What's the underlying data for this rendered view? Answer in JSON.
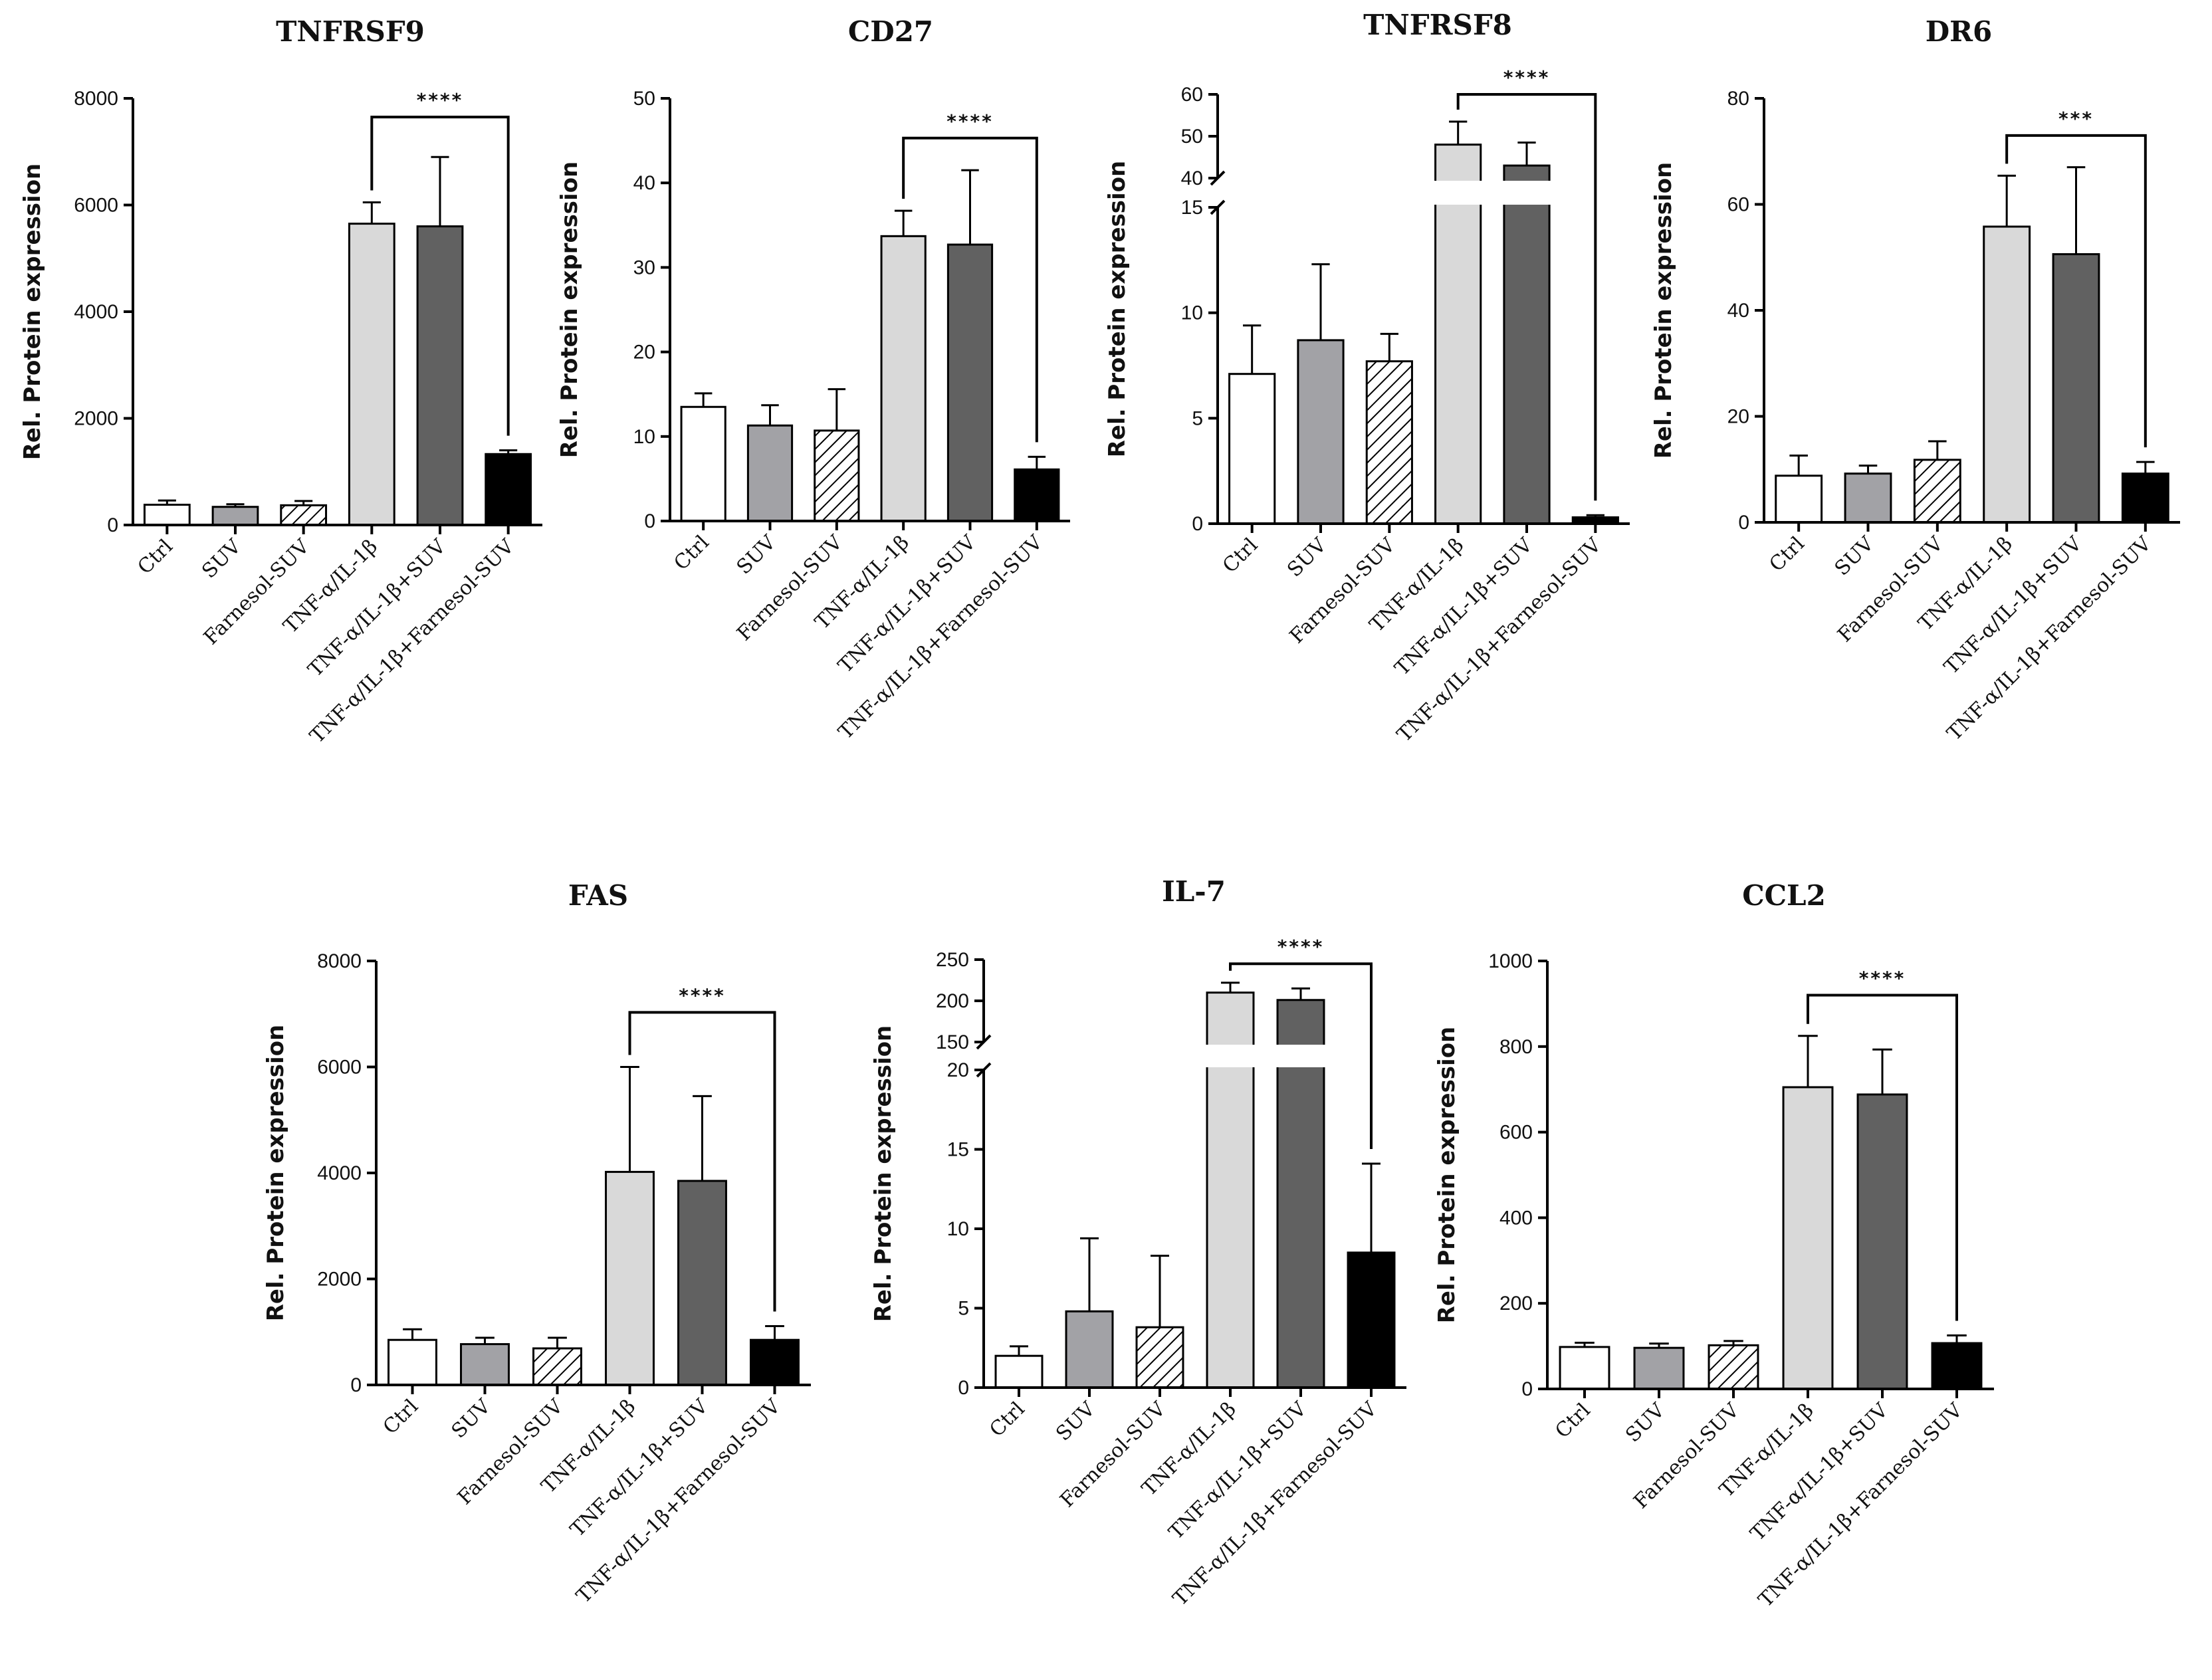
{
  "figure": {
    "palette": {
      "white": "#ffffff",
      "mid_gray": "#a2a2a6",
      "light_gray": "#d9d9d9",
      "dark_gray": "#616161",
      "black": "#000000",
      "axis": "#000000"
    },
    "categories": [
      "Ctrl",
      "SUV",
      "Farnesol-SUV",
      "TNF-α/IL-1β",
      "TNF-α/IL-1β+SUV",
      "TNF-α/IL-1β+Farnesol-SUV"
    ],
    "bar_fills": [
      "white",
      "mid_gray",
      "hatched",
      "light_gray",
      "dark_gray",
      "black"
    ],
    "ylabel": "Rel. Protein expression"
  },
  "chart_data": [
    {
      "type": "bar",
      "title": "TNFRSF9",
      "categories": [
        "Ctrl",
        "SUV",
        "Farnesol-SUV",
        "TNF-α/IL-1β",
        "TNF-α/IL-1β+SUV",
        "TNF-α/IL-1β+Farnesol-SUV"
      ],
      "values": [
        380,
        340,
        370,
        5650,
        5600,
        1330
      ],
      "errors": [
        80,
        50,
        80,
        400,
        1300,
        70
      ],
      "ylim": [
        0,
        8000
      ],
      "yticks": [
        0,
        2000,
        4000,
        6000,
        8000
      ],
      "ylabel": "Rel. Protein expression",
      "significance": {
        "from": 3,
        "to": 5,
        "label": "****",
        "level": 7650
      }
    },
    {
      "type": "bar",
      "title": "CD27",
      "categories": [
        "Ctrl",
        "SUV",
        "Farnesol-SUV",
        "TNF-α/IL-1β",
        "TNF-α/IL-1β+SUV",
        "TNF-α/IL-1β+Farnesol-SUV"
      ],
      "values": [
        13.5,
        11.3,
        10.7,
        33.7,
        32.7,
        6.1
      ],
      "errors": [
        1.6,
        2.4,
        4.9,
        3.0,
        8.8,
        1.5
      ],
      "ylim": [
        0,
        50
      ],
      "yticks": [
        0,
        10,
        20,
        30,
        40,
        50
      ],
      "ylabel": "Rel. Protein expression",
      "significance": {
        "from": 3,
        "to": 5,
        "label": "****",
        "level": 45.3
      }
    },
    {
      "type": "bar",
      "title": "TNFRSF8",
      "categories": [
        "Ctrl",
        "SUV",
        "Farnesol-SUV",
        "TNF-α/IL-1β",
        "TNF-α/IL-1β+SUV",
        "TNF-α/IL-1β+Farnesol-SUV"
      ],
      "values": [
        7.1,
        8.7,
        7.7,
        48,
        43,
        0.3
      ],
      "errors": [
        2.3,
        3.6,
        1.3,
        5.5,
        5.5,
        0.1
      ],
      "ylim": [
        0,
        60
      ],
      "axis_break": {
        "lower": [
          0,
          15
        ],
        "upper": [
          40,
          60
        ]
      },
      "yticks_lower": [
        0,
        5,
        10,
        15
      ],
      "yticks_upper": [
        40,
        50,
        60
      ],
      "ylabel": "Rel. Protein expression",
      "significance": {
        "from": 3,
        "to": 5,
        "label": "****",
        "level": 60
      }
    },
    {
      "type": "bar",
      "title": "DR6",
      "categories": [
        "Ctrl",
        "SUV",
        "Farnesol-SUV",
        "TNF-α/IL-1β",
        "TNF-α/IL-1β+SUV",
        "TNF-α/IL-1β+Farnesol-SUV"
      ],
      "values": [
        8.8,
        9.2,
        11.8,
        55.8,
        50.6,
        9.2
      ],
      "errors": [
        3.8,
        1.5,
        3.5,
        9.6,
        16.4,
        2.2
      ],
      "ylim": [
        0,
        80
      ],
      "yticks": [
        0,
        20,
        40,
        60,
        80
      ],
      "ylabel": "Rel. Protein expression",
      "significance": {
        "from": 3,
        "to": 5,
        "label": "***",
        "level": 73
      }
    },
    {
      "type": "bar",
      "title": "FAS",
      "categories": [
        "Ctrl",
        "SUV",
        "Farnesol-SUV",
        "TNF-α/IL-1β",
        "TNF-α/IL-1β+SUV",
        "TNF-α/IL-1β+Farnesol-SUV"
      ],
      "values": [
        850,
        770,
        690,
        4020,
        3850,
        850
      ],
      "errors": [
        200,
        120,
        200,
        1980,
        1600,
        260
      ],
      "ylim": [
        0,
        8000
      ],
      "yticks": [
        0,
        2000,
        4000,
        6000,
        8000
      ],
      "ylabel": "Rel. Protein expression",
      "significance": {
        "from": 3,
        "to": 5,
        "label": "****",
        "level": 7030
      }
    },
    {
      "type": "bar",
      "title": "IL-7",
      "categories": [
        "Ctrl",
        "SUV",
        "Farnesol-SUV",
        "TNF-α/IL-1β",
        "TNF-α/IL-1β+SUV",
        "TNF-α/IL-1β+Farnesol-SUV"
      ],
      "values": [
        2.0,
        4.8,
        3.8,
        210,
        201,
        8.5
      ],
      "errors": [
        0.6,
        4.6,
        4.5,
        12,
        14,
        5.6
      ],
      "ylim": [
        0,
        250
      ],
      "axis_break": {
        "lower": [
          0,
          20
        ],
        "upper": [
          150,
          250
        ]
      },
      "yticks_lower": [
        0,
        5,
        10,
        15,
        20
      ],
      "yticks_upper": [
        150,
        200,
        250
      ],
      "ylabel": "Rel. Protein expression",
      "significance": {
        "from": 3,
        "to": 5,
        "label": "****",
        "level": 245
      }
    },
    {
      "type": "bar",
      "title": "CCL2",
      "categories": [
        "Ctrl",
        "SUV",
        "Farnesol-SUV",
        "TNF-α/IL-1β",
        "TNF-α/IL-1β+SUV",
        "TNF-α/IL-1β+Farnesol-SUV"
      ],
      "values": [
        98,
        96,
        102,
        705,
        688,
        107
      ],
      "errors": [
        10,
        10,
        10,
        120,
        105,
        18
      ],
      "ylim": [
        0,
        1000
      ],
      "yticks": [
        0,
        200,
        400,
        600,
        800,
        1000
      ],
      "ylabel": "Rel. Protein expression",
      "significance": {
        "from": 3,
        "to": 5,
        "label": "****",
        "level": 920
      }
    }
  ]
}
